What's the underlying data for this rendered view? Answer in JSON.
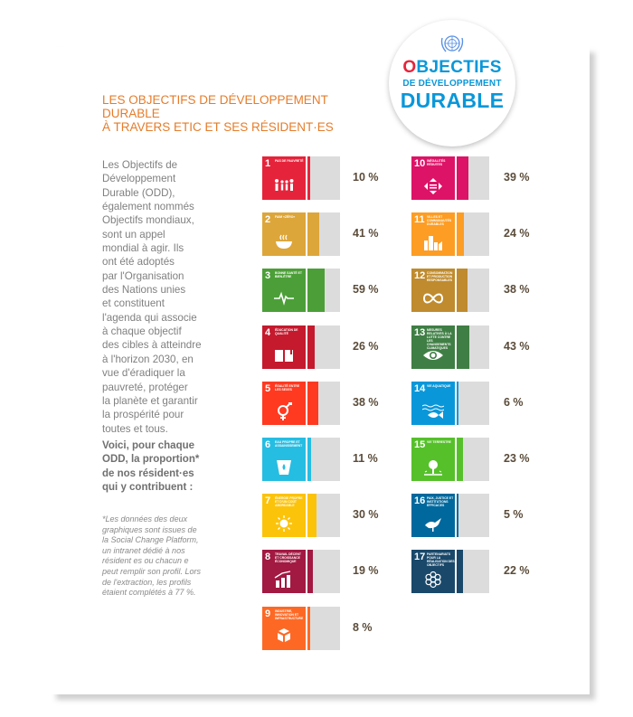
{
  "logo": {
    "line1": "OBJECTIFS",
    "line2": "DE DÉVELOPPEMENT",
    "line3": "DURABLE"
  },
  "title": {
    "line1": "LES OBJECTIFS DE DÉVELOPPEMENT DURABLE",
    "line2": "À TRAVERS ETIC ET SES RÉSIDENT·ES"
  },
  "intro_lines": [
    "Les Objectifs de",
    "Développement",
    "Durable (ODD),",
    "également nommés",
    "Objectifs mondiaux,",
    "sont un appel",
    "mondial à agir. Ils",
    "ont été adoptés",
    "par l'Organisation",
    "des Nations unies",
    "et constituent",
    "l'agenda qui associe",
    "à chaque objectif",
    "des cibles à atteindre",
    "à l'horizon 2030, en",
    "vue d'éradiquer la",
    "pauvreté, protéger",
    "la planète et garantir",
    "la prospérité pour",
    "toutes et tous."
  ],
  "highlight_lines": [
    "Voici, pour chaque",
    "ODD, la proportion*",
    "de nos résident·es",
    "qui y contribuent :"
  ],
  "footnote_lines": [
    "*Les données des deux",
    "graphiques sont issues de",
    "la Social Change Platform,",
    "un intranet dédié à nos",
    "résident es ou chacun e",
    "peut remplir son profil. Lors",
    "de l'extraction, les profils",
    "étaient complétés à 77 %."
  ],
  "chart_data": {
    "type": "bar",
    "categories": [
      "1",
      "2",
      "3",
      "4",
      "5",
      "6",
      "7",
      "8",
      "9",
      "10",
      "11",
      "12",
      "13",
      "14",
      "15",
      "16",
      "17"
    ],
    "values": [
      10,
      41,
      59,
      26,
      38,
      11,
      30,
      19,
      8,
      39,
      24,
      38,
      43,
      6,
      23,
      5,
      22
    ],
    "value_labels": [
      "10 %",
      "41 %",
      "59 %",
      "26 %",
      "38 %",
      "11 %",
      "30 %",
      "19 %",
      "8 %",
      "39 %",
      "24 %",
      "38 %",
      "43 %",
      "6 %",
      "23 %",
      "5 %",
      "22 %"
    ],
    "icon_labels": [
      "PAS DE PAUVRETÉ",
      "FAIM «ZÉRO»",
      "BONNE SANTÉ ET BIEN-ÊTRE",
      "ÉDUCATION DE QUALITÉ",
      "ÉGALITÉ ENTRE LES SEXES",
      "EAU PROPRE ET ASSAINISSEMENT",
      "ÉNERGIE PROPRE ET D'UN COÛT ABORDABLE",
      "TRAVAIL DÉCENT ET CROISSANCE ÉCONOMIQUE",
      "INDUSTRIE, INNOVATION ET INFRASTRUCTURE",
      "INÉGALITÉS RÉDUITES",
      "VILLES ET COMMUNAUTÉS DURABLES",
      "CONSOMMATION ET PRODUCTION RESPONSABLES",
      "MESURES RELATIVES À LA LUTTE CONTRE LES CHANGEMENTS CLIMATIQUES",
      "VIE AQUATIQUE",
      "VIE TERRESTRE",
      "PAIX, JUSTICE ET INSTITUTIONS EFFICACES",
      "PARTENARIATS POUR LA RÉALISATION DES OBJECTIFS"
    ],
    "colors": [
      "#e5243b",
      "#dda63a",
      "#4c9f38",
      "#c5192d",
      "#ff3a21",
      "#26bde2",
      "#fcc30b",
      "#a21942",
      "#fd6925",
      "#dd1367",
      "#fd9d24",
      "#bf8b2e",
      "#3f7e44",
      "#0a97d9",
      "#56c02b",
      "#00689d",
      "#19486a"
    ],
    "icons": [
      "people-icon",
      "bowl-icon",
      "heartbeat-icon",
      "book-icon",
      "gender-icon",
      "water-drop-icon",
      "sun-icon",
      "growth-chart-icon",
      "cubes-icon",
      "arrows-icon",
      "city-icon",
      "infinity-icon",
      "eye-globe-icon",
      "fish-icon",
      "tree-icon",
      "dove-icon",
      "flower-icon"
    ],
    "ylim": [
      0,
      100
    ],
    "bar_track_color": "#dcdcdc"
  }
}
